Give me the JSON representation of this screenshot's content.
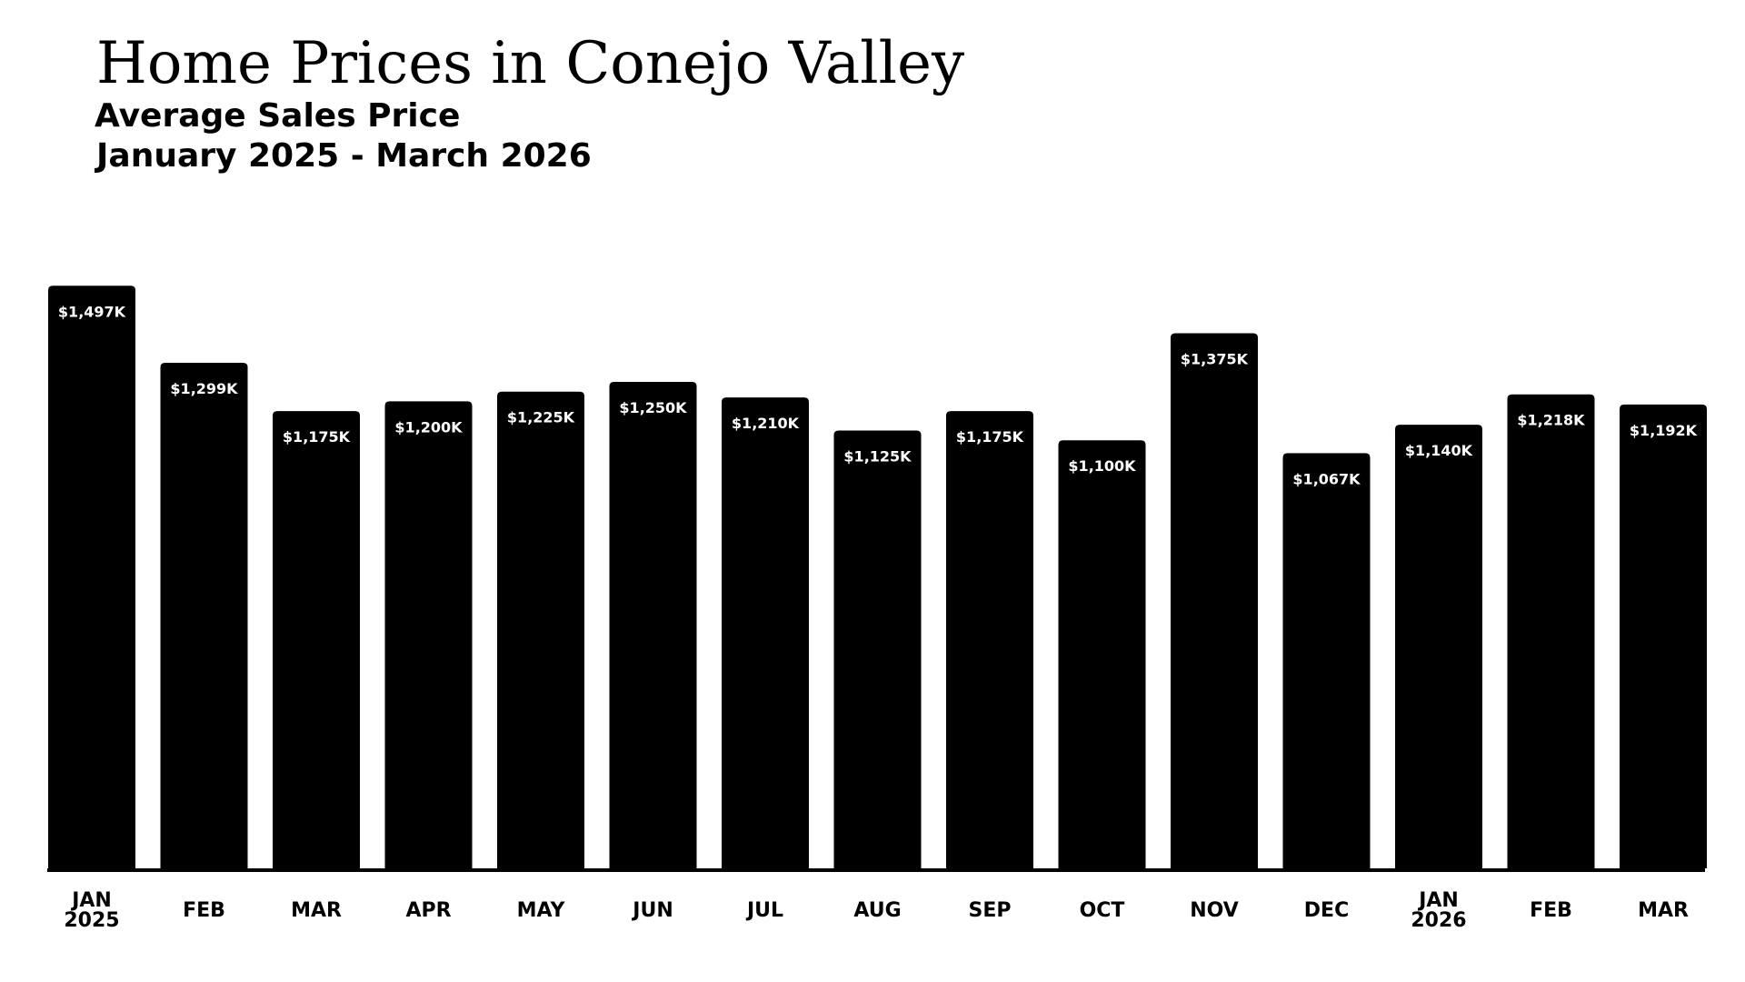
{
  "header": {
    "title": "Home Prices in Conejo Valley",
    "subtitle": "Average Sales Price",
    "date_range": "January 2025 - March 2026"
  },
  "colors": {
    "bar": "#000000",
    "bar_label": "#ffffff",
    "background": "#ffffff",
    "text": "#000000"
  },
  "chart_data": {
    "type": "bar",
    "title": "Home Prices in Conejo Valley",
    "subtitle": "Average Sales Price",
    "xlabel": "",
    "ylabel": "",
    "ylim": [
      0,
      1500
    ],
    "grid": false,
    "categories": [
      [
        "JAN",
        "2025"
      ],
      [
        "FEB"
      ],
      [
        "MAR"
      ],
      [
        "APR"
      ],
      [
        "MAY"
      ],
      [
        "JUN"
      ],
      [
        "JUL"
      ],
      [
        "AUG"
      ],
      [
        "SEP"
      ],
      [
        "OCT"
      ],
      [
        "NOV"
      ],
      [
        "DEC"
      ],
      [
        "JAN",
        "2026"
      ],
      [
        "FEB"
      ],
      [
        "MAR"
      ]
    ],
    "values": [
      1497,
      1299,
      1175,
      1200,
      1225,
      1250,
      1210,
      1125,
      1175,
      1100,
      1375,
      1067,
      1140,
      1218,
      1192
    ],
    "data_labels": [
      "$1,497K",
      "$1,299K",
      "$1,175K",
      "$1,200K",
      "$1,225K",
      "$1,250K",
      "$1,210K",
      "$1,125K",
      "$1,175K",
      "$1,100K",
      "$1,375K",
      "$1,067K",
      "$1,140K",
      "$1,218K",
      "$1,192K"
    ]
  }
}
